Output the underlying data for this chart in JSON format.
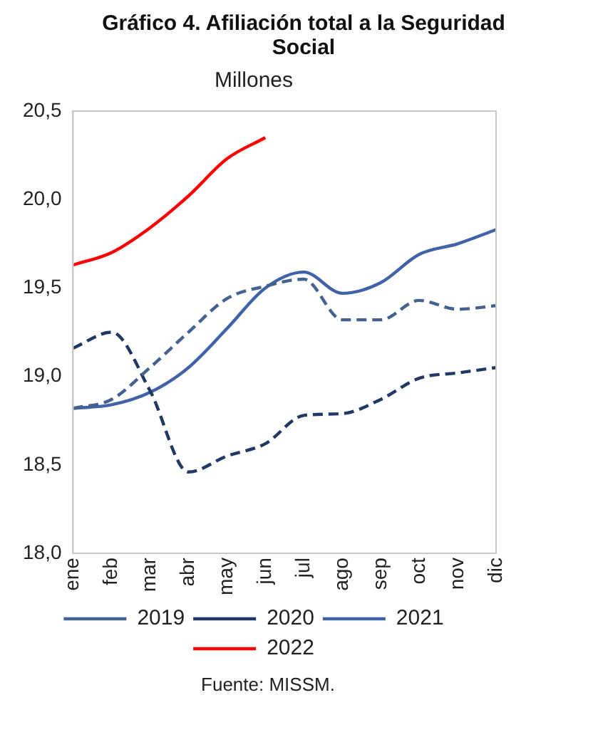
{
  "chart_data": {
    "type": "line",
    "title": "Gráfico 4. Afiliación total a la Seguridad Social",
    "subtitle": "Millones",
    "categories": [
      "ene",
      "feb",
      "mar",
      "abr",
      "may",
      "jun",
      "jul",
      "ago",
      "sep",
      "oct",
      "nov",
      "dic"
    ],
    "series": [
      {
        "name": "2019",
        "color": "#44628f",
        "line_style": "dashed",
        "values": [
          18.82,
          18.87,
          19.05,
          19.25,
          19.44,
          19.51,
          19.55,
          19.32,
          19.32,
          19.43,
          19.38,
          19.4
        ]
      },
      {
        "name": "2020",
        "color": "#1f3864",
        "line_style": "dashed",
        "values": [
          19.16,
          19.25,
          18.92,
          18.46,
          18.55,
          18.62,
          18.78,
          18.79,
          18.87,
          18.99,
          19.02,
          19.05
        ]
      },
      {
        "name": "2021",
        "color": "#4062a8",
        "line_style": "solid",
        "values": [
          18.82,
          18.84,
          18.91,
          19.05,
          19.27,
          19.5,
          19.59,
          19.47,
          19.53,
          19.69,
          19.75,
          19.83
        ]
      },
      {
        "name": "2022",
        "color": "#ff0000",
        "line_style": "solid",
        "values": [
          19.63,
          19.7,
          19.84,
          20.02,
          20.23,
          20.35,
          null,
          null,
          null,
          null,
          null,
          null
        ]
      }
    ],
    "ylim": [
      18,
      20.5
    ],
    "yticks": [
      {
        "value": 18,
        "label": "18,0"
      },
      {
        "value": 18.5,
        "label": "18,5"
      },
      {
        "value": 19,
        "label": "19,0"
      },
      {
        "value": 19.5,
        "label": "19,5"
      },
      {
        "value": 20,
        "label": "20,0"
      },
      {
        "value": 20.5,
        "label": "20,5"
      }
    ],
    "grid": false,
    "legend": "bottom",
    "marker": "none",
    "annotations": [
      "Fuente: MISSM."
    ]
  }
}
